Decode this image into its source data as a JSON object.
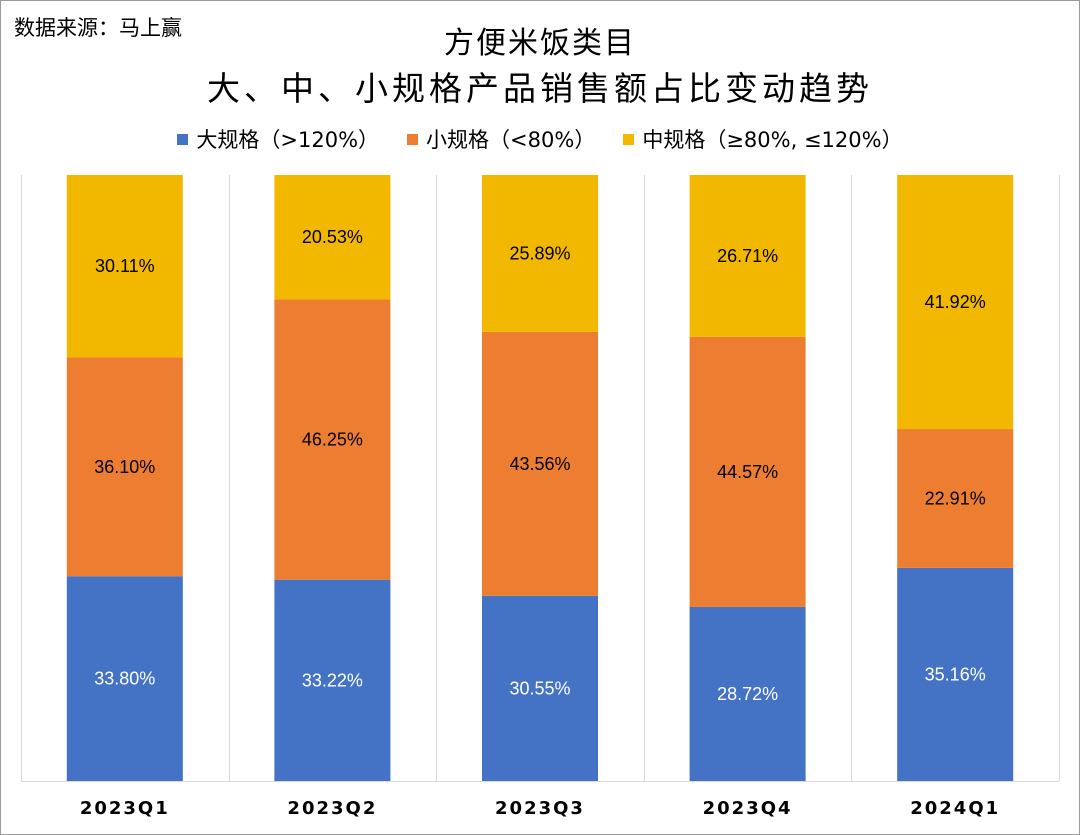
{
  "source_text": "数据来源：马上赢",
  "chart_data": {
    "type": "bar",
    "stacked": true,
    "percent_stacked": true,
    "title_line1": "方便米饭类目",
    "title_line2": "大、中、小规格产品销售额占比变动趋势",
    "categories": [
      "2023Q1",
      "2023Q2",
      "2023Q3",
      "2023Q4",
      "2024Q1"
    ],
    "series": [
      {
        "name": "大规格（>120%）",
        "color": "#4472c4",
        "label_color": "#ffffff",
        "values": [
          33.8,
          33.22,
          30.55,
          28.72,
          35.16
        ],
        "labels": [
          "33.80%",
          "33.22%",
          "30.55%",
          "28.72%",
          "35.16%"
        ]
      },
      {
        "name": "小规格（<80%）",
        "color": "#ed7d31",
        "label_color": "#000000",
        "values": [
          36.1,
          46.25,
          43.56,
          44.57,
          22.91
        ],
        "labels": [
          "36.10%",
          "46.25%",
          "43.56%",
          "44.57%",
          "22.91%"
        ]
      },
      {
        "name": "中规格（≥80%, ≤120%）",
        "color": "#f2b800",
        "label_color": "#000000",
        "values": [
          30.11,
          20.53,
          25.89,
          26.71,
          41.92
        ],
        "labels": [
          "30.11%",
          "20.53%",
          "25.89%",
          "26.71%",
          "41.92%"
        ]
      }
    ],
    "ylim": [
      0,
      100
    ],
    "vertical_gridlines": true,
    "legend_position": "top"
  }
}
